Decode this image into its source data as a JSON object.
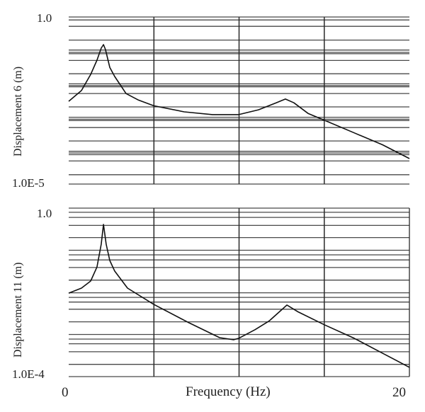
{
  "chart_data": [
    {
      "type": "line",
      "title": "",
      "xlabel": "",
      "ylabel": "Displacement 6 (m)",
      "yscale": "log",
      "xlim": [
        0,
        20
      ],
      "ylim": [
        1e-05,
        1.0
      ],
      "y_tick_labels": {
        "top": "1.0",
        "bottom": "1.0E-5"
      },
      "x_gridlines": [
        5,
        10,
        15
      ],
      "y_gridlines_log10": [
        0,
        -0.09,
        -0.28,
        -0.69,
        -0.99,
        -1.06,
        -1.1,
        -1.3,
        -1.7,
        -2.0,
        -2.05,
        -2.09,
        -2.29,
        -2.69,
        -3.0,
        -3.06,
        -3.1,
        -3.31,
        -3.71,
        -4.02,
        -4.07,
        -4.12,
        -4.31,
        -4.72,
        -5.0
      ],
      "right_border": false,
      "series": [
        {
          "name": "Displacement 6",
          "x": [
            0,
            0.75,
            1.29,
            1.66,
            1.91,
            2.04,
            2.16,
            2.41,
            2.7,
            3.37,
            4.07,
            4.99,
            6.78,
            8.44,
            9.98,
            11.14,
            12.18,
            12.72,
            13.22,
            14.05,
            15.01,
            16.76,
            18.42,
            20.0
          ],
          "y": [
            0.003,
            0.0063,
            0.019,
            0.051,
            0.117,
            0.149,
            0.106,
            0.031,
            0.0166,
            0.0051,
            0.0033,
            0.0022,
            0.00145,
            0.0012,
            0.0012,
            0.00167,
            0.0027,
            0.0035,
            0.0027,
            0.0013,
            0.00081,
            0.00034,
            0.00015,
            5.8e-05
          ]
        }
      ]
    },
    {
      "type": "line",
      "title": "",
      "xlabel": "Frequency (Hz)",
      "ylabel": "Displacement 11 (m)",
      "yscale": "log",
      "xlim": [
        0,
        20
      ],
      "ylim": [
        0.0001,
        1.0
      ],
      "x_tick_labels": {
        "left": "0",
        "right": "20"
      },
      "y_tick_labels": {
        "top": "1.0",
        "bottom": "1.0E-4"
      },
      "x_gridlines": [
        5,
        10,
        15
      ],
      "y_gridlines_log10": [
        0,
        -0.1,
        -0.22,
        -0.41,
        -0.7,
        -1.0,
        -1.11,
        -1.23,
        -1.41,
        -1.71,
        -2.01,
        -2.12,
        -2.23,
        -2.4,
        -2.7,
        -3.0,
        -3.11,
        -3.22,
        -3.41,
        -3.71,
        -4.0
      ],
      "right_border": true,
      "series": [
        {
          "name": "Displacement 11",
          "x": [
            0,
            0.75,
            1.29,
            1.66,
            1.91,
            2.04,
            2.2,
            2.41,
            2.7,
            3.45,
            4.99,
            6.99,
            8.86,
            9.69,
            9.98,
            10.94,
            11.77,
            12.81,
            13.43,
            15.01,
            16.76,
            18.42,
            20.0
          ],
          "y": [
            0.0096,
            0.0126,
            0.0186,
            0.04,
            0.139,
            0.41,
            0.139,
            0.057,
            0.032,
            0.0126,
            0.0052,
            0.00196,
            0.00084,
            0.00075,
            0.00081,
            0.0013,
            0.0021,
            0.005,
            0.0035,
            0.0017,
            0.00081,
            0.00036,
            0.000166
          ]
        }
      ]
    }
  ],
  "panels": {
    "top": {
      "ylabel": "Displacement 6 (m)",
      "ytick_top": "1.0",
      "ytick_bottom": "1.0E-5"
    },
    "bottom": {
      "ylabel": "Displacement 11 (m)",
      "ytick_top": "1.0",
      "ytick_bottom": "1.0E-4",
      "xtick_left": "0",
      "xtick_right": "20",
      "xlabel": "Frequency (Hz)"
    }
  },
  "style": {
    "grid_color": "#2a2a2a",
    "curve_color": "#111111",
    "background": "#ffffff"
  }
}
